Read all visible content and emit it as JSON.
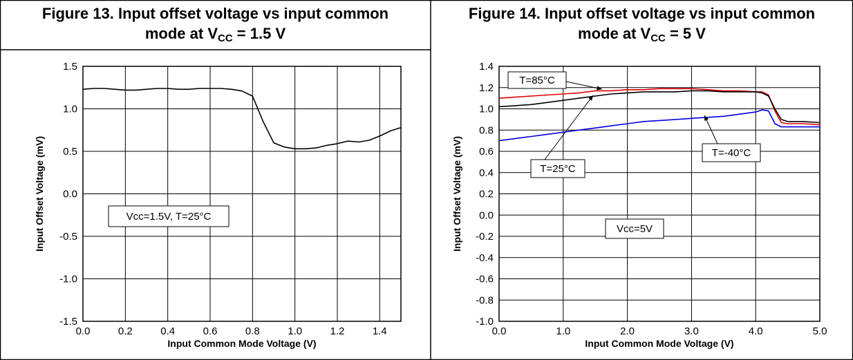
{
  "figures": [
    {
      "caption_line1": "Figure 13. Input offset voltage vs input common",
      "caption_line2_pre": "mode at V",
      "caption_line2_sub": "CC",
      "caption_line2_post": " = 1.5 V"
    },
    {
      "caption_line1": "Figure 14. Input offset voltage vs input common",
      "caption_line2_pre": "mode at V",
      "caption_line2_sub": "CC",
      "caption_line2_post": " = 5 V"
    }
  ],
  "chart_data": [
    {
      "type": "line",
      "xlabel": "Input Common Mode Voltage (V)",
      "ylabel": "Input Offset Voltage (mV)",
      "xlim": [
        0,
        1.5
      ],
      "ylim": [
        -1.5,
        1.5
      ],
      "xticks": [
        "0.0",
        "0.2",
        "0.4",
        "0.6",
        "0.8",
        "1.0",
        "1.2",
        "1.4"
      ],
      "xtick_values": [
        0,
        0.2,
        0.4,
        0.6,
        0.8,
        1.0,
        1.2,
        1.4
      ],
      "yticks": [
        "1.5",
        "1.0",
        "0.5",
        "0.0",
        "-0.5",
        "-1.0",
        "-1.5"
      ],
      "ytick_values": [
        1.5,
        1.0,
        0.5,
        0.0,
        -0.5,
        -1.0,
        -1.5
      ],
      "grid": true,
      "annotations": [
        {
          "text": "Vcc=1.5V, T=25°C"
        }
      ],
      "series": [
        {
          "color": "#000000",
          "x": [
            0,
            0.05,
            0.1,
            0.15,
            0.2,
            0.25,
            0.3,
            0.35,
            0.4,
            0.45,
            0.5,
            0.55,
            0.6,
            0.65,
            0.7,
            0.75,
            0.8,
            0.85,
            0.9,
            0.95,
            1.0,
            1.05,
            1.1,
            1.15,
            1.2,
            1.25,
            1.3,
            1.35,
            1.4,
            1.45,
            1.5
          ],
          "y": [
            1.23,
            1.24,
            1.24,
            1.23,
            1.22,
            1.22,
            1.23,
            1.24,
            1.24,
            1.23,
            1.23,
            1.24,
            1.24,
            1.24,
            1.23,
            1.21,
            1.15,
            0.85,
            0.6,
            0.55,
            0.53,
            0.53,
            0.54,
            0.57,
            0.59,
            0.62,
            0.61,
            0.63,
            0.68,
            0.74,
            0.78
          ]
        }
      ]
    },
    {
      "type": "line",
      "xlabel": "Input Common Mode Voltage (V)",
      "ylabel": "Input Offset Voltage (mV)",
      "xlim": [
        0,
        5
      ],
      "ylim": [
        -1.0,
        1.4
      ],
      "xticks": [
        "0.0",
        "1.0",
        "2.0",
        "3.0",
        "4.0",
        "5.0"
      ],
      "xtick_values": [
        0,
        1,
        2,
        3,
        4,
        5
      ],
      "yticks": [
        "1.4",
        "1.2",
        "1.0",
        "0.8",
        "0.6",
        "0.4",
        "0.2",
        "0.0",
        "-0.2",
        "-0.4",
        "-0.6",
        "-0.8",
        "-1.0"
      ],
      "ytick_values": [
        1.4,
        1.2,
        1.0,
        0.8,
        0.6,
        0.4,
        0.2,
        0.0,
        -0.2,
        -0.4,
        -0.6,
        -0.8,
        -1.0
      ],
      "grid": true,
      "annotations": [
        {
          "text": "Vcc=5V"
        }
      ],
      "series": [
        {
          "name": "T=85°C",
          "color": "#e00000",
          "x": [
            0,
            0.25,
            0.5,
            0.75,
            1.0,
            1.25,
            1.5,
            1.75,
            2.0,
            2.25,
            2.5,
            2.75,
            3.0,
            3.25,
            3.5,
            3.75,
            4.0,
            4.1,
            4.2,
            4.3,
            4.4,
            4.5,
            4.75,
            5.0
          ],
          "y": [
            1.1,
            1.11,
            1.12,
            1.13,
            1.14,
            1.15,
            1.17,
            1.17,
            1.18,
            1.18,
            1.19,
            1.19,
            1.19,
            1.18,
            1.17,
            1.17,
            1.16,
            1.16,
            1.13,
            0.98,
            0.87,
            0.86,
            0.86,
            0.85
          ]
        },
        {
          "name": "T=25°C",
          "color": "#000000",
          "x": [
            0,
            0.25,
            0.5,
            0.75,
            1.0,
            1.25,
            1.5,
            1.75,
            2.0,
            2.25,
            2.5,
            2.75,
            3.0,
            3.25,
            3.5,
            3.75,
            4.0,
            4.1,
            4.2,
            4.3,
            4.4,
            4.5,
            4.75,
            5.0
          ],
          "y": [
            1.02,
            1.03,
            1.04,
            1.06,
            1.08,
            1.1,
            1.12,
            1.14,
            1.15,
            1.16,
            1.16,
            1.16,
            1.17,
            1.17,
            1.16,
            1.16,
            1.16,
            1.15,
            1.12,
            1.0,
            0.9,
            0.88,
            0.88,
            0.87
          ]
        },
        {
          "name": "T=-40°C",
          "color": "#0000e0",
          "x": [
            0,
            0.25,
            0.5,
            0.75,
            1.0,
            1.25,
            1.5,
            1.75,
            2.0,
            2.25,
            2.5,
            2.75,
            3.0,
            3.25,
            3.5,
            3.75,
            4.0,
            4.1,
            4.2,
            4.3,
            4.4,
            4.5,
            4.75,
            5.0
          ],
          "y": [
            0.7,
            0.72,
            0.74,
            0.76,
            0.78,
            0.8,
            0.82,
            0.84,
            0.86,
            0.88,
            0.89,
            0.9,
            0.91,
            0.92,
            0.93,
            0.95,
            0.97,
            0.99,
            0.98,
            0.86,
            0.83,
            0.83,
            0.83,
            0.83
          ]
        }
      ]
    }
  ]
}
